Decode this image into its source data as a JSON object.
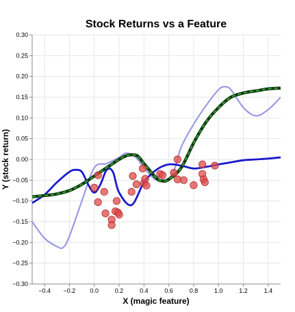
{
  "chart_data": {
    "type": "scatter",
    "title": "Stock Returns vs a Feature",
    "xlabel": "X (magic feature)",
    "ylabel": "Y (stock return)",
    "xlim": [
      -0.5,
      1.5
    ],
    "ylim": [
      -0.3,
      0.3
    ],
    "xticks": [
      -0.4,
      -0.2,
      0.0,
      0.2,
      0.4,
      0.6,
      0.8,
      1.0,
      1.2,
      1.4
    ],
    "xtick_labels": [
      "−0.4",
      "−0.2",
      "0.0",
      "0.2",
      "0.4",
      "0.6",
      "0.8",
      "1.0",
      "1.2",
      "1.4"
    ],
    "yticks": [
      0.3,
      0.25,
      0.2,
      0.15,
      0.1,
      0.05,
      0.0,
      -0.05,
      -0.1,
      -0.15,
      -0.2,
      -0.25,
      -0.3
    ],
    "ytick_labels": [
      "0.30",
      "0.25",
      "0.20",
      "0.15",
      "0.10",
      "0.05",
      "0.00",
      "−0.05",
      "−0.10",
      "−0.15",
      "−0.20",
      "−0.25",
      "−0.30"
    ],
    "grid": true,
    "colors": {
      "points": "#e04a4a",
      "points_edge": "#b03030",
      "light_curve": "#9a9ae6",
      "dark_curve": "#1a1acc",
      "dashed_curve_outer": "#0a3a0a",
      "dashed_curve_inner": "#3c9a3c"
    },
    "points": [
      {
        "x": 0.0,
        "y": -0.068
      },
      {
        "x": 0.03,
        "y": -0.038
      },
      {
        "x": 0.03,
        "y": -0.103
      },
      {
        "x": 0.08,
        "y": -0.078
      },
      {
        "x": 0.09,
        "y": -0.13
      },
      {
        "x": 0.14,
        "y": -0.145
      },
      {
        "x": 0.14,
        "y": -0.158
      },
      {
        "x": 0.17,
        "y": -0.125
      },
      {
        "x": 0.18,
        "y": -0.1
      },
      {
        "x": 0.19,
        "y": -0.128
      },
      {
        "x": 0.2,
        "y": -0.133
      },
      {
        "x": 0.3,
        "y": -0.078
      },
      {
        "x": 0.31,
        "y": -0.04
      },
      {
        "x": 0.34,
        "y": -0.06
      },
      {
        "x": 0.39,
        "y": -0.022
      },
      {
        "x": 0.4,
        "y": -0.057
      },
      {
        "x": 0.41,
        "y": -0.047
      },
      {
        "x": 0.42,
        "y": -0.063
      },
      {
        "x": 0.53,
        "y": -0.035
      },
      {
        "x": 0.55,
        "y": -0.038
      },
      {
        "x": 0.64,
        "y": -0.032
      },
      {
        "x": 0.67,
        "y": 0.0
      },
      {
        "x": 0.67,
        "y": -0.048
      },
      {
        "x": 0.72,
        "y": -0.05
      },
      {
        "x": 0.8,
        "y": -0.062
      },
      {
        "x": 0.87,
        "y": -0.012
      },
      {
        "x": 0.87,
        "y": -0.035
      },
      {
        "x": 0.88,
        "y": -0.048
      },
      {
        "x": 0.89,
        "y": -0.055
      },
      {
        "x": 0.97,
        "y": -0.015
      }
    ],
    "series": [
      {
        "style": "light-solid",
        "x": [
          -0.5,
          -0.4,
          -0.3,
          -0.25,
          -0.2,
          -0.1,
          0.0,
          0.1,
          0.2,
          0.25,
          0.3,
          0.35,
          0.4,
          0.5,
          0.6,
          0.65,
          0.7,
          0.8,
          0.9,
          1.0,
          1.05,
          1.1,
          1.2,
          1.3,
          1.4,
          1.5
        ],
        "y": [
          -0.15,
          -0.19,
          -0.21,
          -0.212,
          -0.185,
          -0.1,
          -0.02,
          -0.01,
          0.005,
          0.015,
          0.012,
          0.0,
          -0.02,
          -0.05,
          -0.045,
          -0.02,
          0.03,
          0.085,
          0.13,
          0.168,
          0.175,
          0.168,
          0.125,
          0.105,
          0.12,
          0.15
        ]
      },
      {
        "style": "dark-solid",
        "x": [
          -0.5,
          -0.4,
          -0.3,
          -0.2,
          -0.15,
          -0.1,
          -0.05,
          0.0,
          0.05,
          0.1,
          0.15,
          0.2,
          0.3,
          0.4,
          0.5,
          0.6,
          0.7,
          0.8,
          0.9,
          1.0,
          1.1,
          1.2,
          1.3,
          1.4,
          1.5
        ],
        "y": [
          -0.105,
          -0.085,
          -0.055,
          -0.03,
          -0.025,
          -0.03,
          -0.06,
          -0.08,
          -0.06,
          -0.025,
          -0.03,
          -0.08,
          -0.11,
          -0.055,
          -0.025,
          -0.012,
          -0.015,
          -0.022,
          -0.018,
          -0.012,
          -0.007,
          -0.002,
          0.0,
          0.002,
          0.005
        ]
      },
      {
        "style": "green-dashed",
        "x": [
          -0.5,
          -0.4,
          -0.3,
          -0.2,
          -0.1,
          0.0,
          0.1,
          0.2,
          0.25,
          0.3,
          0.35,
          0.4,
          0.5,
          0.55,
          0.6,
          0.7,
          0.8,
          0.9,
          1.0,
          1.1,
          1.2,
          1.3,
          1.4,
          1.5
        ],
        "y": [
          -0.09,
          -0.087,
          -0.083,
          -0.075,
          -0.06,
          -0.04,
          -0.02,
          0.0,
          0.008,
          0.011,
          0.008,
          -0.01,
          -0.045,
          -0.052,
          -0.048,
          -0.02,
          0.04,
          0.09,
          0.125,
          0.15,
          0.16,
          0.165,
          0.17,
          0.172
        ]
      }
    ]
  }
}
